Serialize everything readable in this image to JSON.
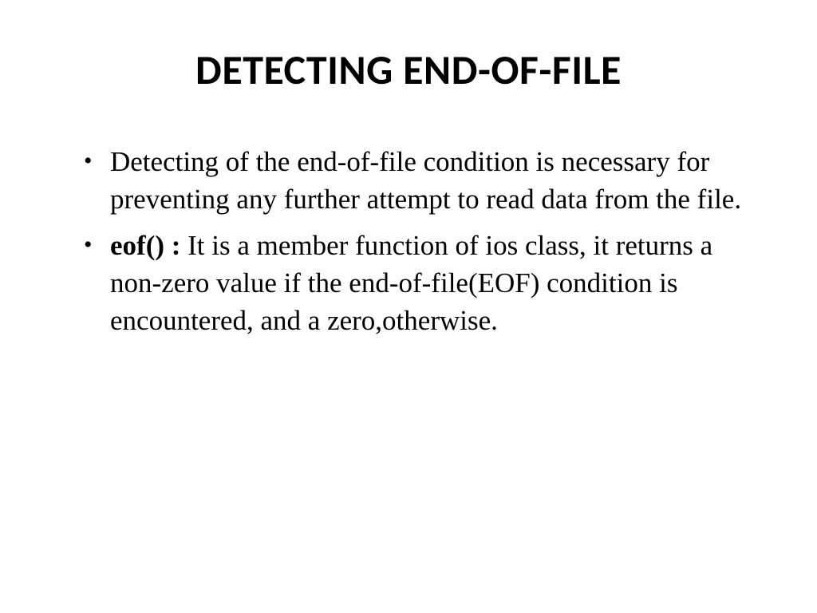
{
  "slide": {
    "title": "DETECTING END-OF-FILE",
    "title_fontsize": 52,
    "title_font": "Calibri",
    "title_weight": 700,
    "body_font": "Times New Roman",
    "body_fontsize": 35,
    "background_color": "#ffffff",
    "text_color": "#000000",
    "bullets": [
      {
        "lead": "",
        "text": "Detecting of the end-of-file condition is necessary for preventing any further attempt to read data from the file."
      },
      {
        "lead": "eof() :",
        "text": "  It is a member function of ios class, it returns a non-zero value if the end-of-file(EOF) condition is encountered, and a  zero,otherwise."
      }
    ]
  }
}
